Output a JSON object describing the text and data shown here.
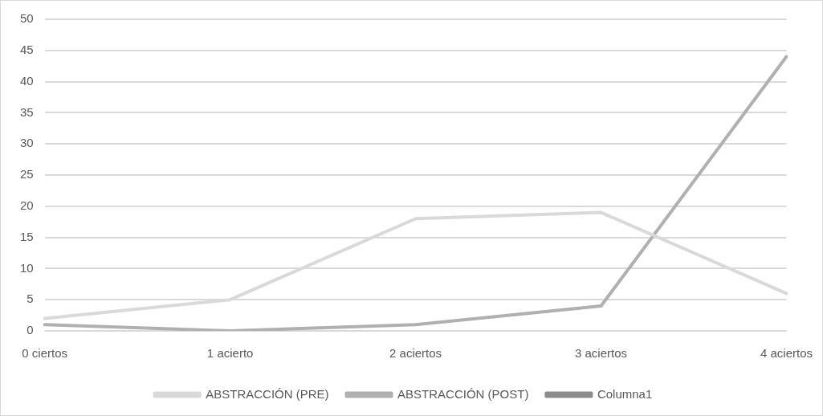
{
  "chart_data": {
    "type": "line",
    "categories": [
      "0 ciertos",
      "1 acierto",
      "2 aciertos",
      "3 aciertos",
      "4 aciertos"
    ],
    "series": [
      {
        "name": "ABSTRACCIÓN (PRE)",
        "color": "#d9d9d9",
        "values": [
          2,
          5,
          18,
          19,
          6
        ]
      },
      {
        "name": "ABSTRACCIÓN (POST)",
        "color": "#b0b0b0",
        "values": [
          1,
          0,
          1,
          4,
          44
        ]
      },
      {
        "name": "Columna1",
        "color": "#8c8c8c",
        "values": [
          null,
          null,
          null,
          null,
          null
        ]
      }
    ],
    "ylim": [
      0,
      50
    ],
    "yticks": [
      0,
      5,
      10,
      15,
      20,
      25,
      30,
      35,
      40,
      45,
      50
    ],
    "grid": "y",
    "legend": "bottom",
    "marker": "none",
    "line_style": "solid"
  }
}
